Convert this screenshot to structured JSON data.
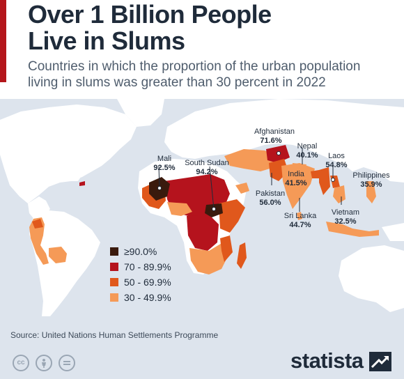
{
  "header": {
    "title_line1": "Over 1 Billion People",
    "title_line2": "Live in Slums",
    "subtitle_line1": "Countries in which the proportion of the urban population",
    "subtitle_line2": "living in slums was greater than 30 percent in 2022"
  },
  "legend": [
    {
      "label": "≥90.0%",
      "color": "#3a1a0d"
    },
    {
      "label": "70 - 89.9%",
      "color": "#b5131d"
    },
    {
      "label": "50 - 69.9%",
      "color": "#e0581c"
    },
    {
      "label": "30 - 49.9%",
      "color": "#f59a57"
    }
  ],
  "callouts": {
    "mali": {
      "name": "Mali",
      "value": "92.5%"
    },
    "south_sudan": {
      "name": "South Sudan",
      "value": "94.2%"
    },
    "afghanistan": {
      "name": "Afghanistan",
      "value": "71.6%"
    },
    "nepal": {
      "name": "Nepal",
      "value": "40.1%"
    },
    "laos": {
      "name": "Laos",
      "value": "54.8%"
    },
    "philippines": {
      "name": "Philippines",
      "value": "35.9%"
    },
    "india": {
      "name": "India",
      "value": "41.5%"
    },
    "pakistan": {
      "name": "Pakistan",
      "value": "56.0%"
    },
    "sri_lanka": {
      "name": "Sri Lanka",
      "value": "44.7%"
    },
    "vietnam": {
      "name": "Vietnam",
      "value": "32.5%"
    }
  },
  "colors": {
    "ocean": "#dde4ed",
    "land": "#ffffff",
    "accent": "#b4161b"
  },
  "footer": {
    "source": "Source: United Nations Human Settlements Programme",
    "brand": "statista",
    "license_icons": [
      "cc-icon",
      "attribution-icon",
      "no-derivatives-icon"
    ]
  }
}
